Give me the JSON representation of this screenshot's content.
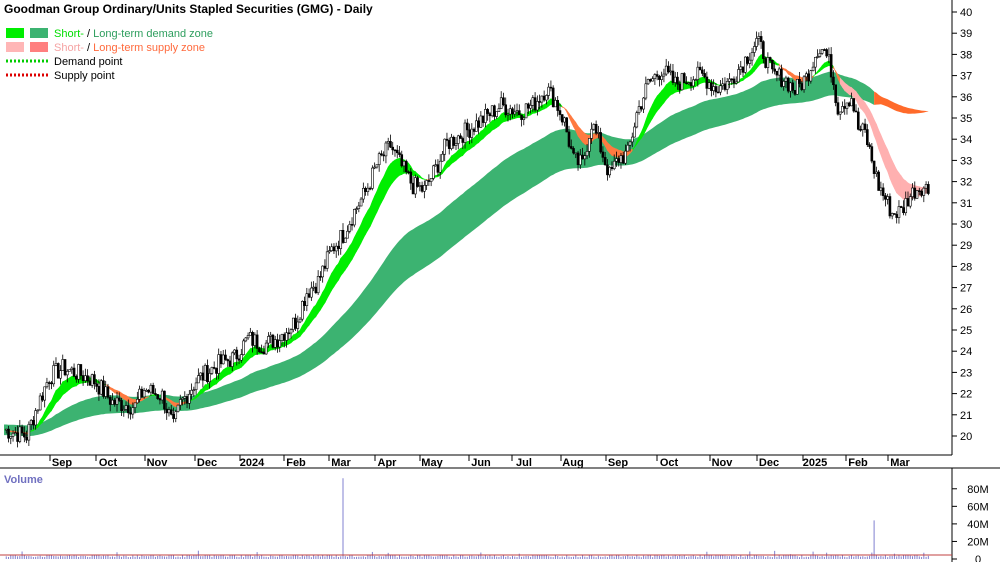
{
  "chart_data": {
    "type": "candlestick",
    "title": "Goodman Group Ordinary/Units Stapled Securities (GMG) - Daily",
    "legend": {
      "placement": "top-left",
      "items": [
        {
          "parts": [
            {
              "text": "Short-",
              "color": "#00dd00"
            },
            {
              "text": " / ",
              "color": "#000000"
            },
            {
              "text": "Long-term demand zone",
              "color": "#2e9e5e"
            }
          ],
          "swatches": [
            "#00ee00",
            "#3cb371"
          ]
        },
        {
          "parts": [
            {
              "text": "Short-",
              "color": "#f5a3a3"
            },
            {
              "text": " / ",
              "color": "#000000"
            },
            {
              "text": "Long-term supply zone",
              "color": "#ff6a3d"
            }
          ],
          "swatches": [
            "#ffb6b6",
            "#ff7f7f"
          ]
        },
        {
          "parts": [
            {
              "text": "Demand point",
              "color": "#000000"
            }
          ],
          "dotted": "#00cc00"
        },
        {
          "parts": [
            {
              "text": "Supply point",
              "color": "#000000"
            }
          ],
          "dotted": "#dd0000"
        }
      ]
    },
    "x_labels": [
      "Sep",
      "Oct",
      "Nov",
      "Dec",
      "2024",
      "Feb",
      "Mar",
      "Apr",
      "May",
      "Jun",
      "Jul",
      "Aug",
      "Sep",
      "Oct",
      "Nov",
      "Dec",
      "2025",
      "Feb",
      "Mar"
    ],
    "y_ticks": [
      20,
      21,
      22,
      23,
      24,
      25,
      26,
      27,
      28,
      29,
      30,
      31,
      32,
      33,
      34,
      35,
      36,
      37,
      38,
      39,
      40
    ],
    "ylim": [
      19,
      40.5
    ],
    "price_path": [
      [
        0,
        20.3
      ],
      [
        10,
        20.0
      ],
      [
        14,
        21.2
      ],
      [
        20,
        22.8
      ],
      [
        26,
        23.2
      ],
      [
        34,
        22.9
      ],
      [
        40,
        22.6
      ],
      [
        48,
        21.6
      ],
      [
        58,
        21.4
      ],
      [
        62,
        22.2
      ],
      [
        70,
        21.9
      ],
      [
        75,
        20.4
      ],
      [
        78,
        21.5
      ],
      [
        85,
        22.6
      ],
      [
        95,
        23.4
      ],
      [
        102,
        23.7
      ],
      [
        108,
        24.6
      ],
      [
        115,
        24.3
      ],
      [
        121,
        24.6
      ],
      [
        129,
        25.4
      ],
      [
        134,
        26.8
      ],
      [
        139,
        27.3
      ],
      [
        145,
        28.8
      ],
      [
        150,
        29.5
      ],
      [
        155,
        30.6
      ],
      [
        160,
        31.5
      ],
      [
        165,
        32.8
      ],
      [
        171,
        33.7
      ],
      [
        176,
        32.7
      ],
      [
        181,
        31.8
      ],
      [
        186,
        31.6
      ],
      [
        191,
        32.6
      ],
      [
        196,
        33.8
      ],
      [
        202,
        34.2
      ],
      [
        210,
        34.8
      ],
      [
        220,
        35.6
      ],
      [
        228,
        35.3
      ],
      [
        234,
        35.6
      ],
      [
        240,
        36.4
      ],
      [
        244,
        35.8
      ],
      [
        248,
        34.8
      ],
      [
        252,
        33.0
      ],
      [
        256,
        32.8
      ],
      [
        260,
        34.8
      ],
      [
        264,
        33.6
      ],
      [
        268,
        32.3
      ],
      [
        272,
        33.1
      ],
      [
        276,
        33.3
      ],
      [
        280,
        35.2
      ],
      [
        285,
        36.6
      ],
      [
        291,
        37.3
      ],
      [
        297,
        36.6
      ],
      [
        303,
        36.9
      ],
      [
        309,
        37.0
      ],
      [
        315,
        36.4
      ],
      [
        321,
        36.7
      ],
      [
        327,
        37.6
      ],
      [
        333,
        38.6
      ],
      [
        336,
        38.1
      ],
      [
        340,
        37.0
      ],
      [
        345,
        36.9
      ],
      [
        350,
        36.3
      ],
      [
        355,
        36.9
      ],
      [
        360,
        38.3
      ],
      [
        363,
        38.2
      ],
      [
        366,
        37.3
      ],
      [
        369,
        35.5
      ],
      [
        372,
        35.8
      ],
      [
        375,
        36.0
      ],
      [
        378,
        34.5
      ],
      [
        381,
        34.3
      ],
      [
        384,
        33.0
      ],
      [
        387,
        31.8
      ],
      [
        390,
        31.2
      ],
      [
        393,
        30.5
      ],
      [
        397,
        30.6
      ],
      [
        400,
        31.2
      ],
      [
        403,
        31.6
      ],
      [
        406,
        31.8
      ],
      [
        409,
        31.6
      ]
    ],
    "volume_axis": {
      "label": "Volume",
      "ticks": [
        "80M",
        "60M",
        "40M",
        "20M",
        "0"
      ],
      "max": 90
    },
    "volume_spikes": [
      [
        150,
        92
      ],
      [
        385,
        44
      ]
    ]
  }
}
